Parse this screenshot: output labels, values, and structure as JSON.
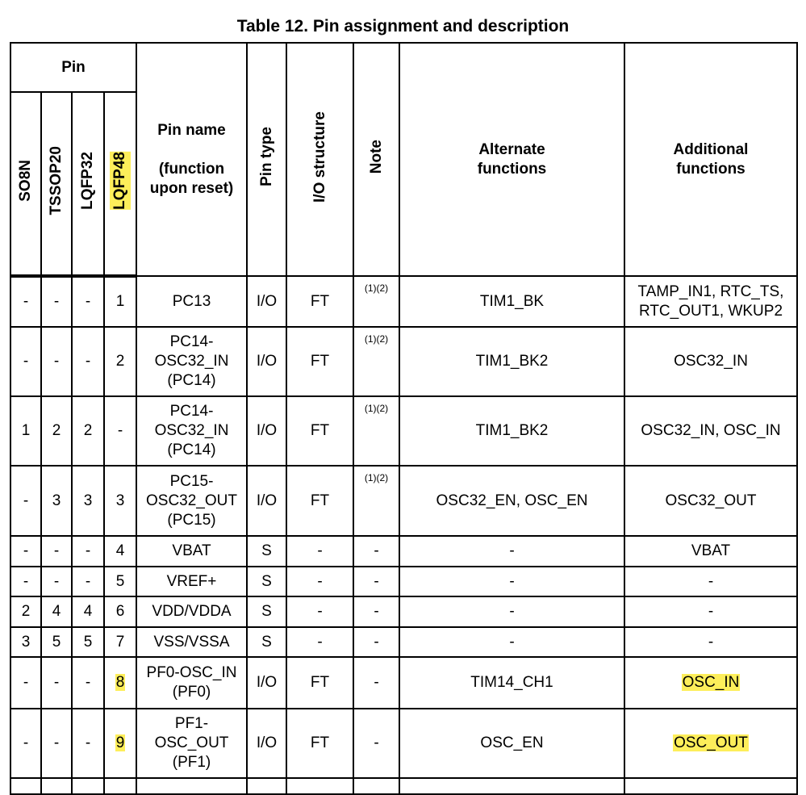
{
  "title": "Table 12. Pin assignment and description",
  "highlight_color": "#fdee5a",
  "headers": {
    "pin_group": "Pin",
    "packages": [
      "SO8N",
      "TSSOP20",
      "LQFP32",
      "LQFP48"
    ],
    "highlighted_package": "LQFP48",
    "pin_name_line1": "Pin name",
    "pin_name_line2": "(function upon reset)",
    "pin_type": "Pin type",
    "io_structure": "I/O structure",
    "note": "Note",
    "alternate": "Alternate functions",
    "additional": "Additional functions"
  },
  "rows": [
    {
      "so8n": "-",
      "tssop20": "-",
      "lqfp32": "-",
      "lqfp48": "1",
      "name": [
        "PC13"
      ],
      "type": "I/O",
      "io": "FT",
      "note": "(1)(2)",
      "alt": "TIM1_BK",
      "add": [
        "TAMP_IN1, RTC_TS,",
        "RTC_OUT1, WKUP2"
      ],
      "highlight": []
    },
    {
      "so8n": "-",
      "tssop20": "-",
      "lqfp32": "-",
      "lqfp48": "2",
      "name": [
        "PC14-",
        "OSC32_IN",
        "(PC14)"
      ],
      "type": "I/O",
      "io": "FT",
      "note": "(1)(2)",
      "alt": "TIM1_BK2",
      "add": [
        "OSC32_IN"
      ],
      "highlight": []
    },
    {
      "so8n": "1",
      "tssop20": "2",
      "lqfp32": "2",
      "lqfp48": "-",
      "name": [
        "PC14-",
        "OSC32_IN",
        "(PC14)"
      ],
      "type": "I/O",
      "io": "FT",
      "note": "(1)(2)",
      "alt": "TIM1_BK2",
      "add": [
        "OSC32_IN, OSC_IN"
      ],
      "highlight": []
    },
    {
      "so8n": "-",
      "tssop20": "3",
      "lqfp32": "3",
      "lqfp48": "3",
      "name": [
        "PC15-",
        "OSC32_OUT",
        "(PC15)"
      ],
      "type": "I/O",
      "io": "FT",
      "note": "(1)(2)",
      "alt": "OSC32_EN, OSC_EN",
      "add": [
        "OSC32_OUT"
      ],
      "highlight": []
    },
    {
      "so8n": "-",
      "tssop20": "-",
      "lqfp32": "-",
      "lqfp48": "4",
      "name": [
        "VBAT"
      ],
      "type": "S",
      "io": "-",
      "note": "-",
      "alt": "-",
      "add": [
        "VBAT"
      ],
      "highlight": []
    },
    {
      "so8n": "-",
      "tssop20": "-",
      "lqfp32": "-",
      "lqfp48": "5",
      "name": [
        "VREF+"
      ],
      "type": "S",
      "io": "-",
      "note": "-",
      "alt": "-",
      "add": [
        "-"
      ],
      "highlight": []
    },
    {
      "so8n": "2",
      "tssop20": "4",
      "lqfp32": "4",
      "lqfp48": "6",
      "name": [
        "VDD/VDDA"
      ],
      "type": "S",
      "io": "-",
      "note": "-",
      "alt": "-",
      "add": [
        "-"
      ],
      "highlight": []
    },
    {
      "so8n": "3",
      "tssop20": "5",
      "lqfp32": "5",
      "lqfp48": "7",
      "name": [
        "VSS/VSSA"
      ],
      "type": "S",
      "io": "-",
      "note": "-",
      "alt": "-",
      "add": [
        "-"
      ],
      "highlight": []
    },
    {
      "so8n": "-",
      "tssop20": "-",
      "lqfp32": "-",
      "lqfp48": "8",
      "name": [
        "PF0-OSC_IN",
        "(PF0)"
      ],
      "type": "I/O",
      "io": "FT",
      "note": "-",
      "alt": "TIM14_CH1",
      "add": [
        "OSC_IN"
      ],
      "highlight": [
        "lqfp48",
        "add"
      ]
    },
    {
      "so8n": "-",
      "tssop20": "-",
      "lqfp32": "-",
      "lqfp48": "9",
      "name": [
        "PF1-",
        "OSC_OUT",
        "(PF1)"
      ],
      "type": "I/O",
      "io": "FT",
      "note": "-",
      "alt": "OSC_EN",
      "add": [
        "OSC_OUT"
      ],
      "highlight": [
        "lqfp48",
        "add"
      ]
    }
  ]
}
